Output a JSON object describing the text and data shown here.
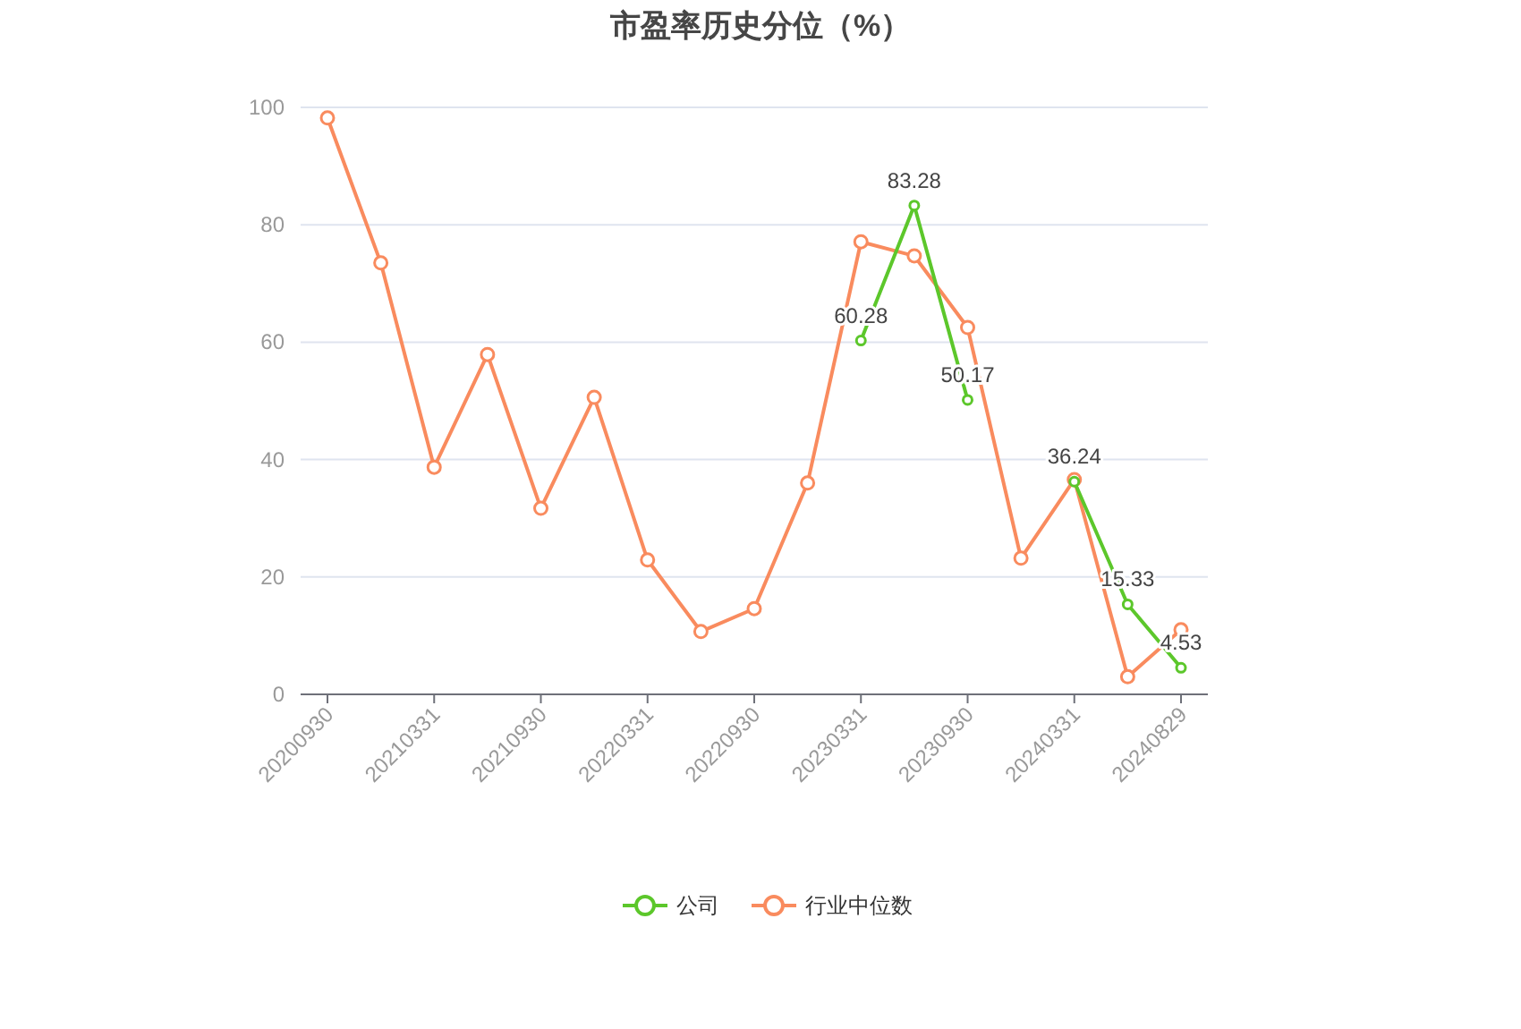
{
  "chart_data": {
    "type": "line",
    "title": "市盈率历史分位（%）",
    "categories": [
      "20200930",
      null,
      "20210331",
      null,
      "20210930",
      null,
      "20220331",
      null,
      "20220930",
      null,
      "20230331",
      null,
      "20230930",
      null,
      "20240331",
      null,
      "20240829"
    ],
    "series": [
      {
        "name": "公司",
        "color": "#5cc72b",
        "values": [
          null,
          null,
          null,
          null,
          null,
          null,
          null,
          null,
          null,
          null,
          60.28,
          83.28,
          50.17,
          null,
          36.24,
          15.33,
          4.53
        ],
        "value_labels": [
          null,
          null,
          null,
          null,
          null,
          null,
          null,
          null,
          null,
          null,
          "60.28",
          "83.28",
          "50.17",
          null,
          "36.24",
          "15.33",
          "4.53"
        ]
      },
      {
        "name": "行业中位数",
        "color": "#f98b5e",
        "values": [
          98.2,
          73.5,
          38.7,
          57.9,
          31.7,
          50.6,
          22.9,
          10.7,
          14.6,
          36.0,
          77.1,
          74.7,
          62.5,
          23.2,
          36.6,
          3.0,
          11.0
        ]
      }
    ],
    "ylim": [
      0,
      100
    ],
    "yticks": [
      0,
      20,
      40,
      60,
      80,
      100
    ],
    "grid": "y",
    "legend": "bottom",
    "marker": "circle",
    "line_style": "solid"
  }
}
